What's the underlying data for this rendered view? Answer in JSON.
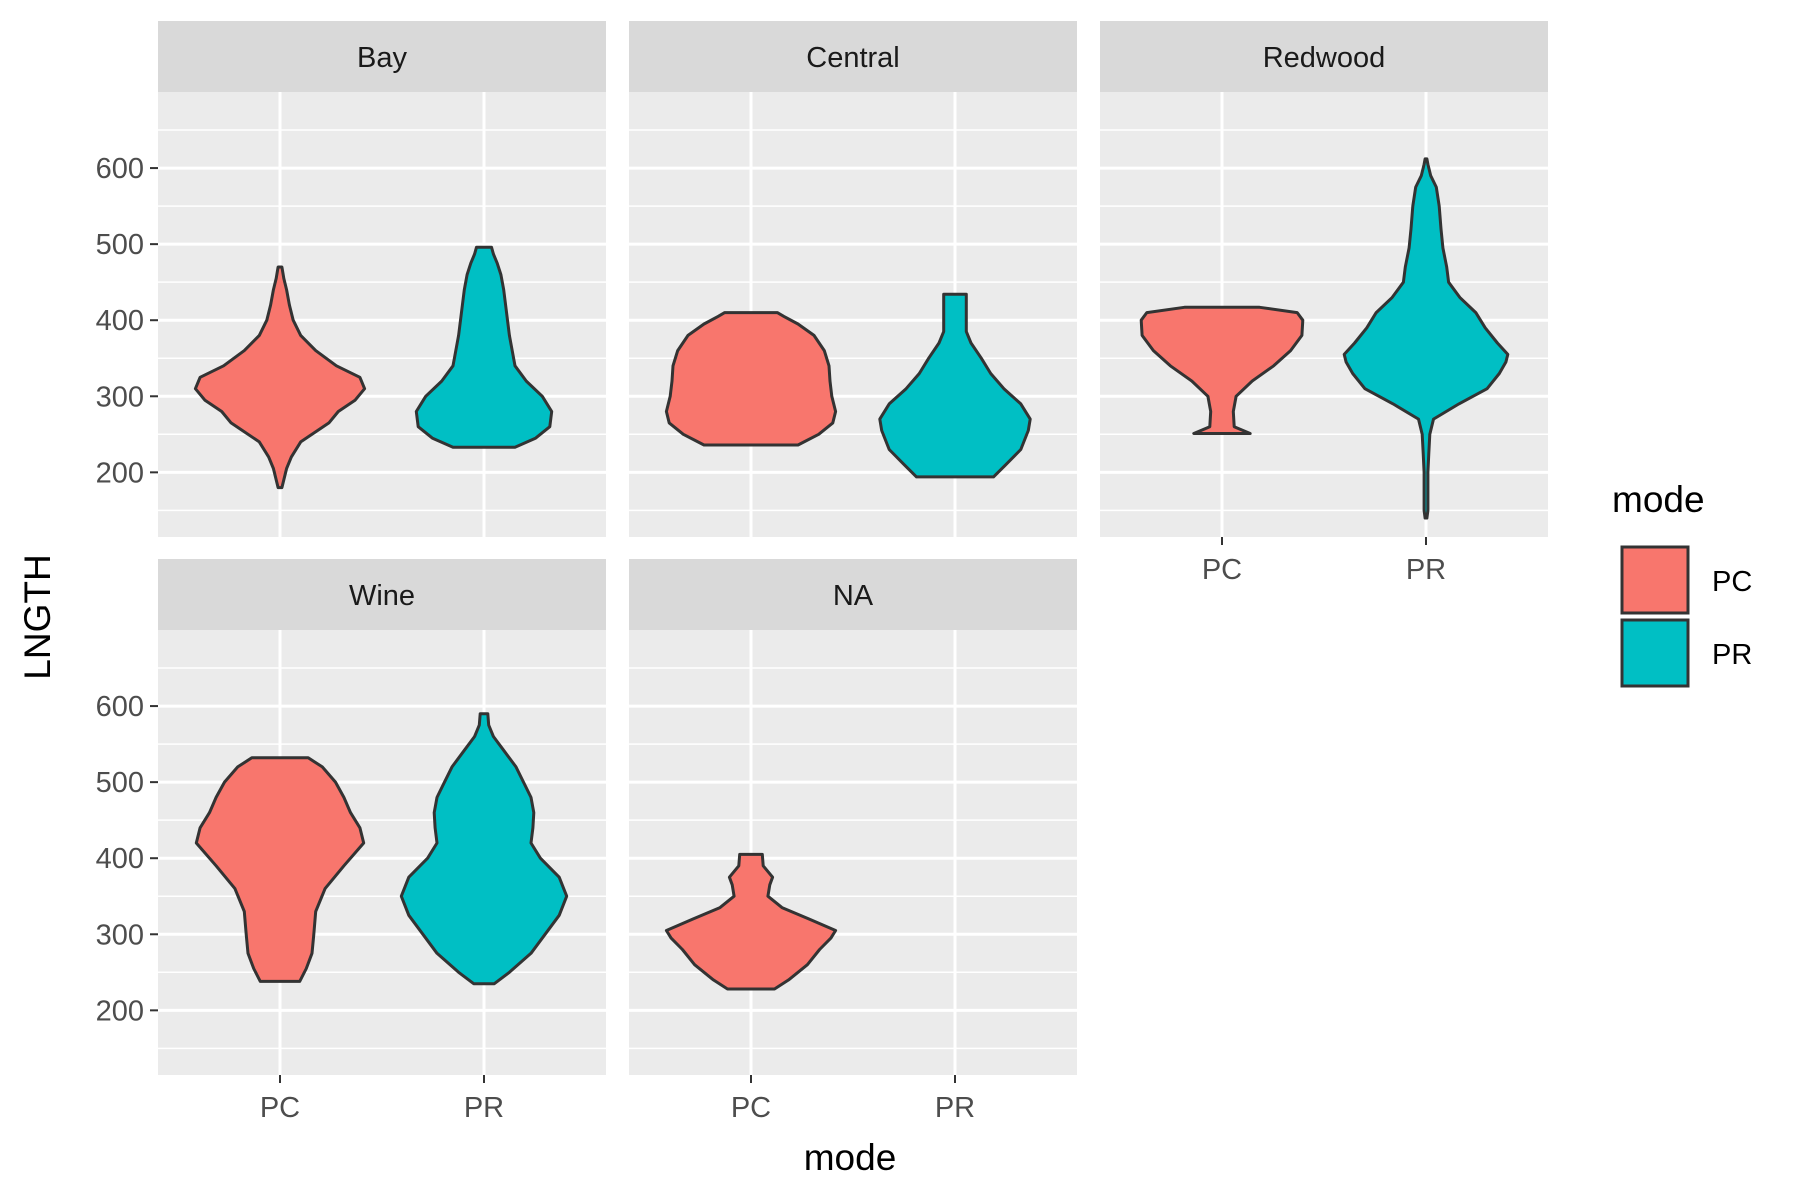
{
  "chart_data": {
    "type": "violin",
    "xlabel": "mode",
    "ylabel": "LNGTH",
    "categories": [
      "PC",
      "PR"
    ],
    "ylim": [
      115,
      700
    ],
    "yticks": [
      200,
      300,
      400,
      500,
      600
    ],
    "grid": true,
    "legend": {
      "title": "mode",
      "placement": "right",
      "entries": [
        {
          "label": "PC",
          "color": "#F8766D"
        },
        {
          "label": "PR",
          "color": "#00BFC4"
        }
      ]
    },
    "panels": [
      {
        "name": "Bay",
        "violins": [
          {
            "category": "PC",
            "color": "#F8766D",
            "profile": [
              [
                180,
                0.02
              ],
              [
                190,
                0.04
              ],
              [
                205,
                0.07
              ],
              [
                220,
                0.12
              ],
              [
                240,
                0.22
              ],
              [
                255,
                0.4
              ],
              [
                265,
                0.52
              ],
              [
                280,
                0.62
              ],
              [
                295,
                0.8
              ],
              [
                310,
                0.9
              ],
              [
                325,
                0.85
              ],
              [
                340,
                0.6
              ],
              [
                360,
                0.38
              ],
              [
                380,
                0.22
              ],
              [
                400,
                0.14
              ],
              [
                420,
                0.1
              ],
              [
                440,
                0.07
              ],
              [
                455,
                0.04
              ],
              [
                470,
                0.02
              ]
            ]
          },
          {
            "category": "PR",
            "color": "#00BFC4",
            "profile": [
              [
                233,
                0.33
              ],
              [
                245,
                0.55
              ],
              [
                260,
                0.7
              ],
              [
                280,
                0.72
              ],
              [
                300,
                0.62
              ],
              [
                320,
                0.45
              ],
              [
                340,
                0.33
              ],
              [
                360,
                0.3
              ],
              [
                380,
                0.27
              ],
              [
                400,
                0.25
              ],
              [
                420,
                0.23
              ],
              [
                440,
                0.21
              ],
              [
                460,
                0.18
              ],
              [
                475,
                0.14
              ],
              [
                487,
                0.1
              ],
              [
                496,
                0.08
              ]
            ]
          }
        ]
      },
      {
        "name": "Central",
        "violins": [
          {
            "category": "PC",
            "color": "#F8766D",
            "profile": [
              [
                236,
                0.5
              ],
              [
                250,
                0.72
              ],
              [
                265,
                0.87
              ],
              [
                280,
                0.9
              ],
              [
                300,
                0.86
              ],
              [
                320,
                0.84
              ],
              [
                340,
                0.83
              ],
              [
                360,
                0.78
              ],
              [
                380,
                0.67
              ],
              [
                395,
                0.5
              ],
              [
                405,
                0.35
              ],
              [
                410,
                0.28
              ]
            ]
          },
          {
            "category": "PR",
            "color": "#00BFC4",
            "profile": [
              [
                194,
                0.41
              ],
              [
                210,
                0.54
              ],
              [
                230,
                0.7
              ],
              [
                255,
                0.78
              ],
              [
                270,
                0.8
              ],
              [
                290,
                0.7
              ],
              [
                310,
                0.52
              ],
              [
                330,
                0.38
              ],
              [
                350,
                0.28
              ],
              [
                370,
                0.17
              ],
              [
                385,
                0.12
              ],
              [
                400,
                0.12
              ],
              [
                420,
                0.12
              ],
              [
                434,
                0.12
              ]
            ]
          }
        ]
      },
      {
        "name": "Redwood",
        "violins": [
          {
            "category": "PC",
            "color": "#F8766D",
            "profile": [
              [
                251,
                0.3
              ],
              [
                260,
                0.13
              ],
              [
                280,
                0.12
              ],
              [
                300,
                0.15
              ],
              [
                320,
                0.32
              ],
              [
                340,
                0.55
              ],
              [
                360,
                0.73
              ],
              [
                380,
                0.85
              ],
              [
                400,
                0.86
              ],
              [
                410,
                0.8
              ],
              [
                417,
                0.4
              ]
            ]
          },
          {
            "category": "PR",
            "color": "#00BFC4",
            "profile": [
              [
                140,
                0.01
              ],
              [
                150,
                0.02
              ],
              [
                175,
                0.02
              ],
              [
                200,
                0.02
              ],
              [
                225,
                0.03
              ],
              [
                250,
                0.04
              ],
              [
                270,
                0.08
              ],
              [
                290,
                0.35
              ],
              [
                310,
                0.65
              ],
              [
                330,
                0.78
              ],
              [
                345,
                0.85
              ],
              [
                355,
                0.87
              ],
              [
                370,
                0.76
              ],
              [
                390,
                0.63
              ],
              [
                410,
                0.53
              ],
              [
                430,
                0.36
              ],
              [
                450,
                0.24
              ],
              [
                470,
                0.22
              ],
              [
                495,
                0.18
              ],
              [
                520,
                0.16
              ],
              [
                550,
                0.14
              ],
              [
                575,
                0.11
              ],
              [
                590,
                0.05
              ],
              [
                605,
                0.02
              ],
              [
                612,
                0.01
              ]
            ]
          }
        ]
      },
      {
        "name": "Wine",
        "violins": [
          {
            "category": "PC",
            "color": "#F8766D",
            "profile": [
              [
                238,
                0.21
              ],
              [
                255,
                0.28
              ],
              [
                275,
                0.34
              ],
              [
                300,
                0.36
              ],
              [
                330,
                0.38
              ],
              [
                360,
                0.48
              ],
              [
                390,
                0.68
              ],
              [
                420,
                0.89
              ],
              [
                440,
                0.85
              ],
              [
                460,
                0.75
              ],
              [
                480,
                0.68
              ],
              [
                500,
                0.59
              ],
              [
                520,
                0.45
              ],
              [
                532,
                0.3
              ]
            ]
          },
          {
            "category": "PR",
            "color": "#00BFC4",
            "profile": [
              [
                235,
                0.11
              ],
              [
                250,
                0.27
              ],
              [
                275,
                0.5
              ],
              [
                300,
                0.65
              ],
              [
                325,
                0.8
              ],
              [
                350,
                0.88
              ],
              [
                375,
                0.8
              ],
              [
                400,
                0.6
              ],
              [
                420,
                0.5
              ],
              [
                440,
                0.52
              ],
              [
                460,
                0.53
              ],
              [
                480,
                0.5
              ],
              [
                500,
                0.42
              ],
              [
                520,
                0.34
              ],
              [
                540,
                0.22
              ],
              [
                560,
                0.1
              ],
              [
                575,
                0.05
              ],
              [
                590,
                0.04
              ]
            ]
          }
        ]
      },
      {
        "name": "NA",
        "violins": [
          {
            "category": "PC",
            "color": "#F8766D",
            "profile": [
              [
                228,
                0.25
              ],
              [
                240,
                0.4
              ],
              [
                260,
                0.6
              ],
              [
                280,
                0.73
              ],
              [
                295,
                0.85
              ],
              [
                305,
                0.9
              ],
              [
                320,
                0.62
              ],
              [
                335,
                0.33
              ],
              [
                350,
                0.18
              ],
              [
                365,
                0.2
              ],
              [
                375,
                0.23
              ],
              [
                390,
                0.13
              ],
              [
                405,
                0.12
              ]
            ]
          }
        ]
      }
    ]
  }
}
